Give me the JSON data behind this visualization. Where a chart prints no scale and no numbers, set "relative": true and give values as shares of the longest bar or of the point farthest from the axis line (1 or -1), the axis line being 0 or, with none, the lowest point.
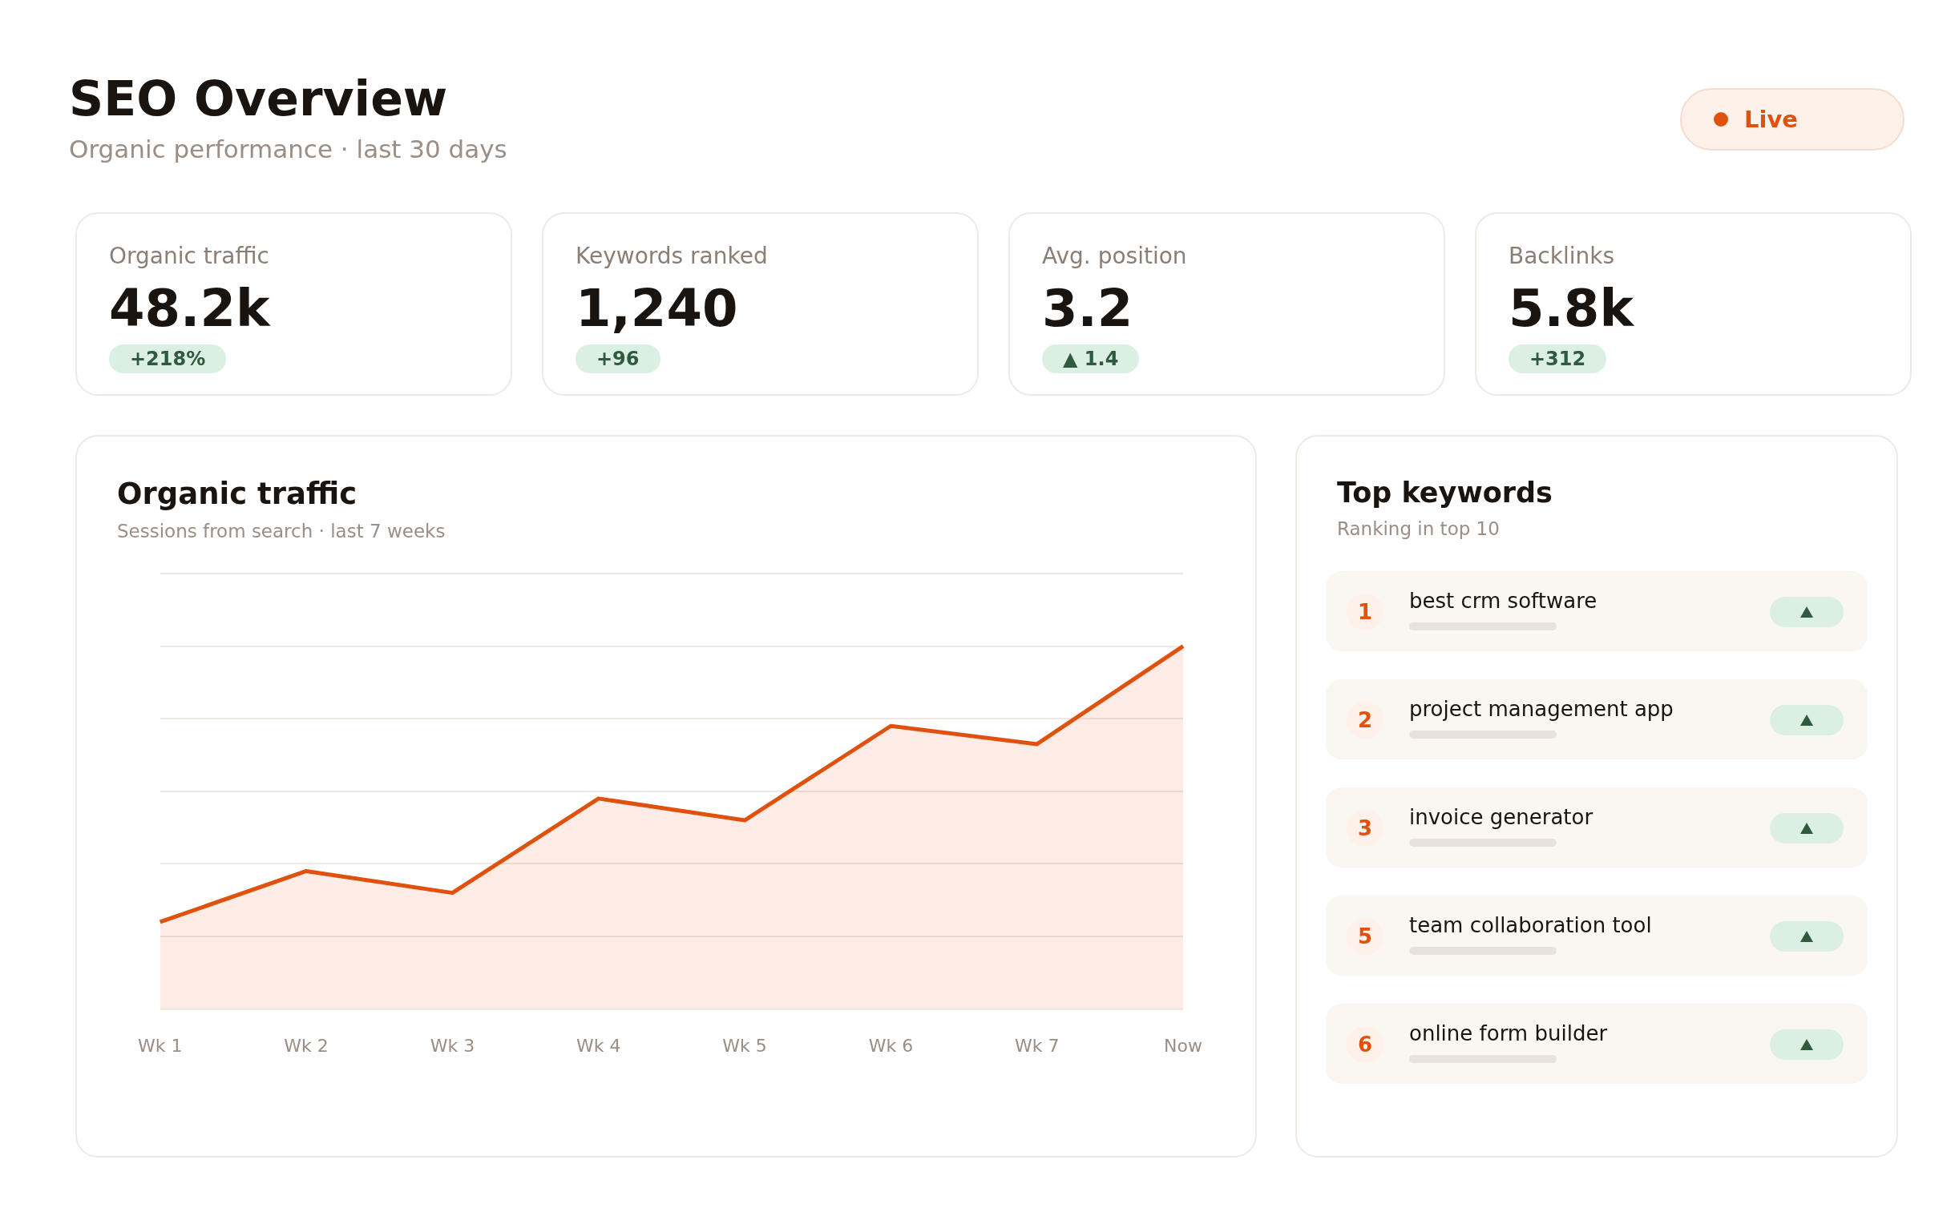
{
  "chart_data": [
    {
      "type": "other",
      "title": "SEO Overview",
      "subtitle": "Organic performance · last 30 days",
      "annotations": [
        "Live"
      ]
    },
    {
      "type": "other",
      "title": "Organic traffic",
      "annotations": [
        "48.2k",
        "+218%"
      ]
    },
    {
      "type": "other",
      "title": "Keywords ranked",
      "annotations": [
        "1,240",
        "+96"
      ]
    },
    {
      "type": "other",
      "title": "Avg. position",
      "annotations": [
        "3.2",
        "▲ 1.4"
      ]
    },
    {
      "type": "other",
      "title": "Backlinks",
      "annotations": [
        "5.8k",
        "+312"
      ]
    },
    {
      "type": "area",
      "title": "Organic traffic",
      "subtitle": "Sessions from search · last 7 weeks",
      "categories": [
        "Wk 1",
        "Wk 2",
        "Wk 3",
        "Wk 4",
        "Wk 5",
        "Wk 6",
        "Wk 7",
        "Now"
      ],
      "values": [
        0.24,
        0.38,
        0.32,
        0.58,
        0.52,
        0.78,
        0.73,
        1
      ],
      "color": "#e0510e",
      "relative": true,
      "grid": "y"
    },
    {
      "type": "other",
      "title": "Top keywords",
      "subtitle": "Ranking in top 10",
      "annotations": [
        "1",
        "best crm software",
        "2",
        "project management app",
        "3",
        "invoice generator",
        "5",
        "team collaboration tool",
        "6",
        "online form builder"
      ]
    }
  ]
}
